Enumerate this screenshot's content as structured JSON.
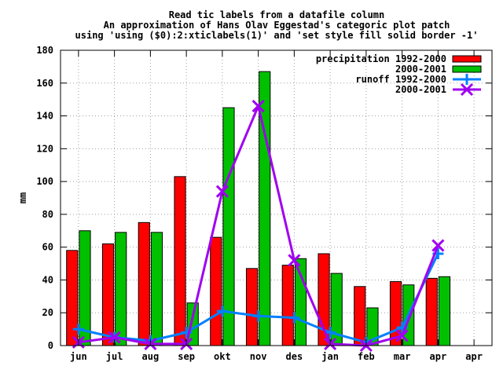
{
  "chart_data": {
    "type": "bar",
    "title_lines": [
      "Read tic labels from a datafile column",
      "An approximation of Hans Olav Eggestad's categoric plot patch",
      "using 'using ($0):2:xticlabels(1)' and 'set style fill solid border -1'"
    ],
    "ylabel": "mm",
    "xlabel": "",
    "ylim": [
      0,
      180
    ],
    "yticks": [
      0,
      20,
      40,
      60,
      80,
      100,
      120,
      140,
      160,
      180
    ],
    "categories": [
      "jun",
      "jul",
      "aug",
      "sep",
      "okt",
      "nov",
      "des",
      "jan",
      "feb",
      "mar",
      "apr",
      "apr"
    ],
    "grid": true,
    "legend_position": "top-right",
    "series": [
      {
        "name": "precipitation 1992-2000",
        "kind": "bar",
        "color": "#ff0000",
        "values": [
          58,
          62,
          75,
          103,
          66,
          47,
          49,
          56,
          36,
          39,
          41,
          null
        ]
      },
      {
        "name": "2000-2001",
        "kind": "bar",
        "color": "#00c000",
        "values": [
          70,
          69,
          69,
          26,
          145,
          167,
          53,
          44,
          23,
          37,
          42,
          null
        ]
      },
      {
        "name": "runoff 1992-2000",
        "kind": "line",
        "color": "#0080ff",
        "marker": "plus",
        "values": [
          10,
          5,
          3,
          8,
          21,
          18,
          17,
          8,
          2,
          11,
          56,
          null
        ]
      },
      {
        "name": "2000-2001",
        "kind": "line",
        "color": "#a000f0",
        "marker": "cross",
        "values": [
          2,
          5,
          1,
          1,
          94,
          146,
          52,
          1,
          0,
          6,
          61,
          null
        ]
      }
    ]
  }
}
